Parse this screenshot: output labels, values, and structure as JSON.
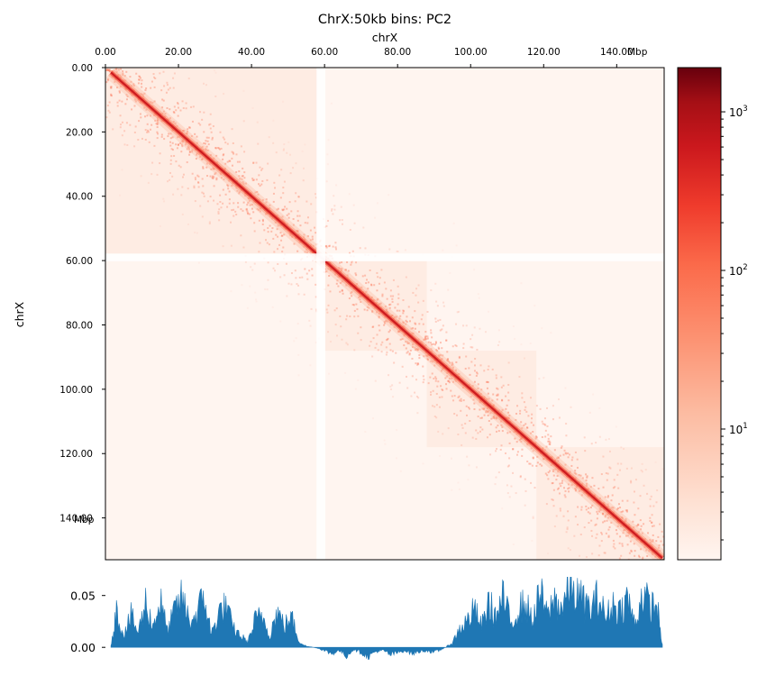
{
  "chart_data": [
    {
      "type": "heatmap",
      "title": "ChrX:50kb bins: PC2",
      "xlabel": "chrX",
      "ylabel": "chrX",
      "unit": "Mbp",
      "x_range_mbp": [
        0,
        153
      ],
      "y_range_mbp": [
        0,
        153
      ],
      "x_ticks": [
        {
          "value": 0,
          "label": "0.00"
        },
        {
          "value": 20,
          "label": "20.00"
        },
        {
          "value": 40,
          "label": "40.00"
        },
        {
          "value": 60,
          "label": "60.00"
        },
        {
          "value": 80,
          "label": "80.00"
        },
        {
          "value": 100,
          "label": "100.00"
        },
        {
          "value": 120,
          "label": "120.00"
        },
        {
          "value": 140,
          "label": "140.00"
        }
      ],
      "y_ticks": [
        {
          "value": 0,
          "label": "0.00"
        },
        {
          "value": 20,
          "label": "20.00"
        },
        {
          "value": 40,
          "label": "40.00"
        },
        {
          "value": 60,
          "label": "60.00"
        },
        {
          "value": 80,
          "label": "80.00"
        },
        {
          "value": 100,
          "label": "100.00"
        },
        {
          "value": 120,
          "label": "120.00"
        },
        {
          "value": 140,
          "label": "140.00"
        }
      ],
      "colormap": "Reds",
      "colorbar": {
        "scale": "log",
        "range": [
          1.5,
          1900
        ],
        "ticks": [
          {
            "value": 10,
            "label": "10",
            "exp": "1"
          },
          {
            "value": 100,
            "label": "10",
            "exp": "2"
          },
          {
            "value": 1000,
            "label": "10",
            "exp": "3"
          }
        ]
      },
      "diagonal_color": "#cb181d",
      "background_color": "#fff5f0"
    },
    {
      "type": "area",
      "series": [
        {
          "color": "#1f77b4",
          "x": [
            1.5,
            3,
            5,
            7,
            9,
            11,
            13,
            15,
            17,
            19,
            21,
            23,
            25,
            27,
            29,
            31,
            33,
            35,
            37,
            39,
            41,
            43,
            45,
            47,
            49,
            51,
            53,
            55,
            57,
            58.5,
            60.5,
            62,
            64,
            66,
            68,
            70,
            72,
            74,
            76,
            78,
            80,
            82,
            84,
            86,
            88,
            90,
            92,
            93.5,
            95,
            97,
            99,
            101,
            103,
            105,
            107,
            109,
            111,
            113,
            115,
            117,
            119,
            121,
            123,
            125,
            127,
            129,
            131,
            133,
            135,
            137,
            139,
            141,
            143,
            145,
            147,
            149,
            151,
            152.5
          ],
          "values": [
            0.002,
            0.034,
            0.012,
            0.03,
            0.014,
            0.043,
            0.02,
            0.045,
            0.015,
            0.036,
            0.047,
            0.025,
            0.031,
            0.05,
            0.012,
            0.033,
            0.039,
            0.018,
            0.011,
            0.005,
            0.026,
            0.03,
            0.012,
            0.034,
            0.021,
            0.028,
            0.006,
            0.001,
            0.0,
            -0.001,
            -0.004,
            -0.006,
            -0.003,
            -0.008,
            -0.002,
            -0.005,
            -0.009,
            -0.004,
            -0.003,
            -0.007,
            -0.005,
            -0.003,
            -0.006,
            -0.004,
            -0.003,
            -0.005,
            -0.002,
            0.001,
            0.004,
            0.018,
            0.025,
            0.036,
            0.02,
            0.043,
            0.028,
            0.048,
            0.022,
            0.036,
            0.042,
            0.025,
            0.052,
            0.03,
            0.046,
            0.038,
            0.057,
            0.05,
            0.043,
            0.036,
            0.049,
            0.028,
            0.041,
            0.035,
            0.047,
            0.021,
            0.052,
            0.039,
            0.04,
            0.003
          ]
        }
      ],
      "x_range_mbp": [
        0,
        153
      ],
      "ylim": [
        -0.012,
        0.068
      ],
      "y_ticks": [
        {
          "value": 0.0,
          "label": "0.00"
        },
        {
          "value": 0.05,
          "label": "0.05"
        }
      ]
    }
  ]
}
